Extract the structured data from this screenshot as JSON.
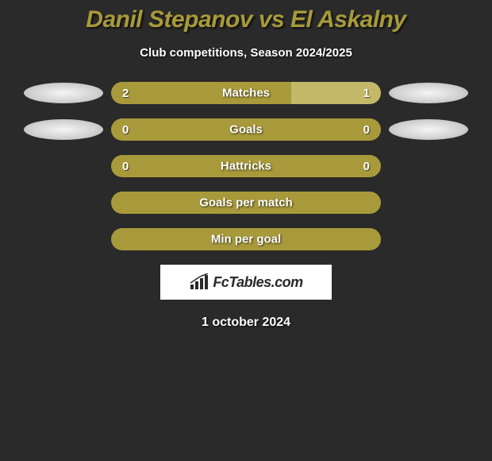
{
  "title": "Danil Stepanov vs El Askalny",
  "subtitle": "Club competitions, Season 2024/2025",
  "date": "1 october 2024",
  "logo_text": "FcTables.com",
  "colors": {
    "background": "#2a2a2a",
    "primary_bar": "#a89a3a",
    "secondary_bar": "#c4b968",
    "text_white": "#ffffff",
    "title_color": "#a89a3a"
  },
  "rows": [
    {
      "label": "Matches",
      "left_value": "2",
      "right_value": "1",
      "left_pct": 66.67,
      "right_pct": 33.33,
      "left_color": "#a89a3a",
      "right_color": "#c4b968",
      "show_avatars": true
    },
    {
      "label": "Goals",
      "left_value": "0",
      "right_value": "0",
      "left_pct": 50,
      "right_pct": 50,
      "left_color": "#a89a3a",
      "right_color": "#a89a3a",
      "show_avatars": true
    },
    {
      "label": "Hattricks",
      "left_value": "0",
      "right_value": "0",
      "left_pct": 50,
      "right_pct": 50,
      "left_color": "#a89a3a",
      "right_color": "#a89a3a",
      "show_avatars": false
    },
    {
      "label": "Goals per match",
      "left_value": "",
      "right_value": "",
      "left_pct": 100,
      "right_pct": 0,
      "left_color": "#a89a3a",
      "right_color": "#a89a3a",
      "show_avatars": false
    },
    {
      "label": "Min per goal",
      "left_value": "",
      "right_value": "",
      "left_pct": 100,
      "right_pct": 0,
      "left_color": "#a89a3a",
      "right_color": "#a89a3a",
      "show_avatars": false
    }
  ]
}
